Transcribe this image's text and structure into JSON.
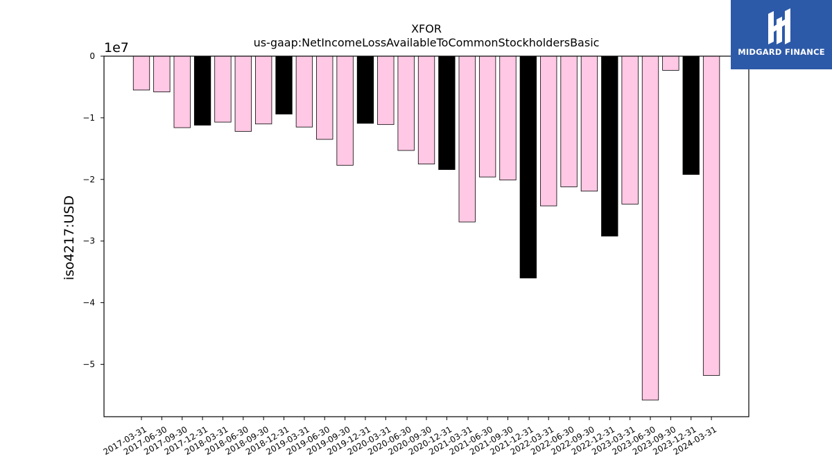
{
  "chart_data": {
    "type": "bar",
    "title": "XFOR",
    "subtitle": "us-gaap:NetIncomeLossAvailableToCommonStockholdersBasic",
    "ylabel": "iso4217:USD",
    "xlabel": "",
    "offset_label": "1e7",
    "ylim": [
      -5.85,
      0
    ],
    "yticks": [
      0,
      -1,
      -2,
      -3,
      -4,
      -5
    ],
    "ytick_labels": [
      "0",
      "−1",
      "−2",
      "−3",
      "−4",
      "−5"
    ],
    "categories": [
      "2017-03-31",
      "2017-06-30",
      "2017-09-30",
      "2017-12-31",
      "2018-03-31",
      "2018-06-30",
      "2018-09-30",
      "2018-12-31",
      "2019-03-31",
      "2019-06-30",
      "2019-09-30",
      "2019-12-31",
      "2020-03-31",
      "2020-06-30",
      "2020-09-30",
      "2020-12-31",
      "2021-03-31",
      "2021-06-30",
      "2021-09-30",
      "2021-12-31",
      "2022-03-31",
      "2022-06-30",
      "2022-09-30",
      "2022-12-31",
      "2023-03-31",
      "2023-06-30",
      "2023-09-30",
      "2023-12-31",
      "2024-03-31"
    ],
    "values": [
      -0.55,
      -0.58,
      -1.16,
      -1.12,
      -1.07,
      -1.22,
      -1.1,
      -0.94,
      -1.15,
      -1.35,
      -1.77,
      -1.09,
      -1.11,
      -1.53,
      -1.75,
      -1.84,
      -2.69,
      -1.96,
      -2.01,
      -3.6,
      -2.43,
      -2.12,
      -2.19,
      -2.92,
      -2.4,
      -5.58,
      -0.23,
      -1.92,
      -5.18
    ],
    "annual": [
      false,
      false,
      false,
      true,
      false,
      false,
      false,
      true,
      false,
      false,
      false,
      true,
      false,
      false,
      false,
      true,
      false,
      false,
      false,
      true,
      false,
      false,
      false,
      true,
      false,
      false,
      false,
      true,
      false
    ],
    "colors": {
      "quarter": "#ffc8e4",
      "annual": "#000000",
      "edge": "#000000"
    }
  },
  "logo": {
    "text": "MIDGARD FINANCE",
    "background": "#2d5aa8"
  }
}
